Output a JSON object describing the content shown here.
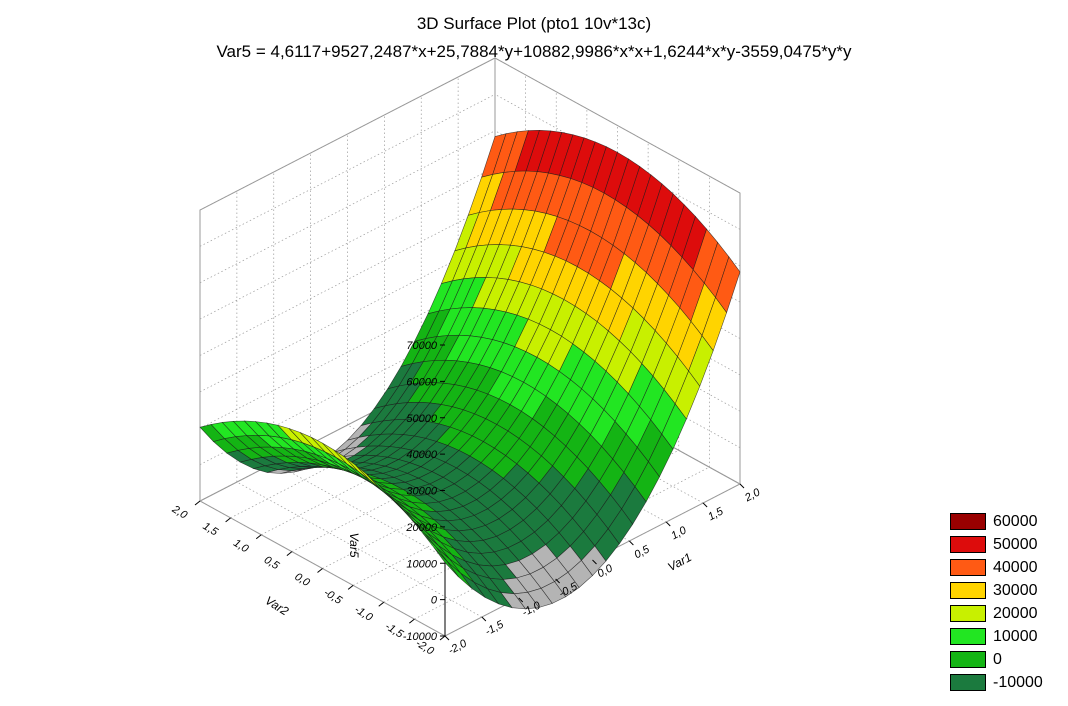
{
  "chart_data": {
    "type": "surface3d",
    "title": "3D Surface Plot (pto1 10v*13c)",
    "equation": "Var5 = 4,6117+9527,2487*x+25,7884*y+10882,9986*x*x+1,6244*x*y-3559,0475*y*y",
    "xlabel": "Var1",
    "ylabel": "Var2",
    "zlabel": "Var5",
    "coefficients": {
      "c0": 4.6117,
      "x": 9527.2487,
      "y": 25.7884,
      "xx": 10882.9986,
      "xy": 1.6244,
      "yy": -3559.0475
    },
    "xlim": [
      -2,
      2
    ],
    "ylim": [
      -2,
      2
    ],
    "zlim": [
      -10000,
      70000
    ],
    "x_ticks": [
      "-2,0",
      "-1,5",
      "-1,0",
      "-0,5",
      "0,0",
      "0,5",
      "1,0",
      "1,5",
      "2,0"
    ],
    "y_ticks": [
      "-2,0",
      "-1,5",
      "-1,0",
      "-0,5",
      "0,0",
      "0,5",
      "1,0",
      "1,5",
      "2,0"
    ],
    "z_ticks": [
      "-10000",
      "0",
      "10000",
      "20000",
      "30000",
      "40000",
      "50000",
      "60000",
      "70000"
    ],
    "x_tick_values": [
      -2,
      -1.5,
      -1,
      -0.5,
      0,
      0.5,
      1,
      1.5,
      2
    ],
    "y_tick_values": [
      -2,
      -1.5,
      -1,
      -0.5,
      0,
      0.5,
      1,
      1.5,
      2
    ],
    "z_tick_values": [
      -10000,
      0,
      10000,
      20000,
      30000,
      40000,
      50000,
      60000,
      70000
    ],
    "legend_position": "bottom-right",
    "grid": true,
    "legend": [
      {
        "label": "60000",
        "min": 60000,
        "color": "#990000"
      },
      {
        "label": "50000",
        "min": 50000,
        "color": "#dd0c0c"
      },
      {
        "label": "40000",
        "min": 40000,
        "color": "#ff5a14"
      },
      {
        "label": "30000",
        "min": 30000,
        "color": "#ffd400"
      },
      {
        "label": "20000",
        "min": 20000,
        "color": "#c8f000"
      },
      {
        "label": "10000",
        "min": 10000,
        "color": "#22e622"
      },
      {
        "label": "0",
        "min": 0,
        "color": "#14b414"
      },
      {
        "label": "-10000",
        "min": -10000,
        "color": "#1b7a3e"
      }
    ],
    "below_min_color": "#b4b4b4"
  }
}
